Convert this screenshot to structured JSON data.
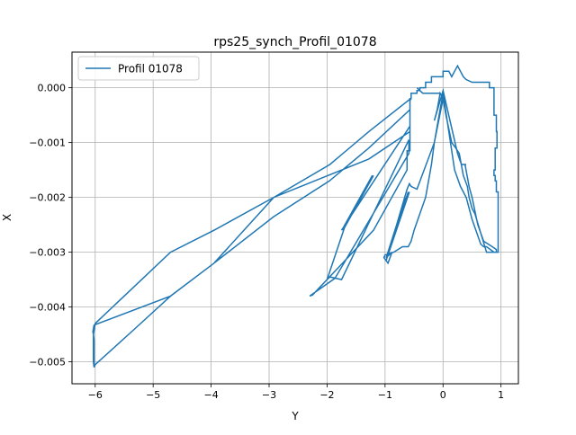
{
  "chart_data": {
    "type": "line",
    "title": "rps25_synch_Profil_01078",
    "xlabel": "Y",
    "ylabel": "X",
    "xlim": [
      -6.4,
      1.3
    ],
    "ylim": [
      -0.0054,
      0.00065
    ],
    "grid": true,
    "legend_position": "upper-left",
    "x_ticks": [
      {
        "value": -6,
        "label": "−6"
      },
      {
        "value": -5,
        "label": "−5"
      },
      {
        "value": -4,
        "label": "−4"
      },
      {
        "value": -3,
        "label": "−3"
      },
      {
        "value": -2,
        "label": "−2"
      },
      {
        "value": -1,
        "label": "−1"
      },
      {
        "value": 0,
        "label": "0"
      },
      {
        "value": 1,
        "label": "1"
      }
    ],
    "y_ticks": [
      {
        "value": 0.0,
        "label": "0.000"
      },
      {
        "value": -0.001,
        "label": "−0.001"
      },
      {
        "value": -0.002,
        "label": "−0.002"
      },
      {
        "value": -0.003,
        "label": "−0.003"
      },
      {
        "value": -0.004,
        "label": "−0.004"
      },
      {
        "value": -0.005,
        "label": "−0.005"
      }
    ],
    "series": [
      {
        "name": "Profil 01078",
        "color": "#1f77b4",
        "x": [
          -6.02,
          -6.03,
          -6.03,
          -6.0,
          -5.32,
          -4.7,
          -3.95,
          -2.92,
          -1.95,
          -1.28,
          -0.56,
          -0.57,
          -0.57,
          -1.28,
          -2.92,
          -3.95,
          -4.7,
          -5.32,
          -6.0,
          -6.02,
          -6.02,
          -6.03,
          -6.04,
          -6.02,
          -4.7,
          -3.95,
          -2.92,
          -1.96,
          -1.28,
          -0.57,
          -0.57,
          -1.75,
          -1.72,
          -1.22,
          -1.73,
          -1.7,
          -1.2,
          -1.7,
          -2.0,
          -1.95,
          -1.75,
          -0.59,
          -0.59,
          -1.85,
          -1.87,
          -2.3,
          -2.25,
          -1.2,
          -0.62,
          -0.62,
          -0.57,
          -0.57,
          -0.55,
          -0.55,
          -0.45,
          -0.45,
          -0.4,
          -0.4,
          -0.3,
          -0.3,
          -0.2,
          -0.2,
          0.0,
          0.0,
          0.05,
          0.1,
          0.15,
          0.2,
          0.25,
          0.3,
          0.35,
          0.4,
          0.5,
          0.8,
          0.8,
          0.88,
          0.88,
          0.92,
          0.92,
          0.93,
          0.93,
          0.9,
          0.9,
          0.88,
          0.88,
          0.9,
          0.9,
          0.92,
          0.92,
          0.95,
          0.95,
          0.9,
          0.88,
          0.75,
          0.7,
          0.65,
          0.5,
          0.4,
          0.3,
          0.2,
          0.1,
          0.0,
          -0.05,
          -0.1,
          -0.15,
          -0.2,
          -0.3,
          -0.5,
          -0.55,
          -0.6,
          -0.65,
          -0.7,
          -0.85,
          -1.0,
          -1.02,
          -0.95,
          -0.88,
          -0.98,
          -0.6,
          -0.95,
          -0.58,
          -0.98,
          -0.65,
          -0.98,
          -0.62,
          -0.58,
          -0.55,
          -0.55,
          -0.45,
          -0.45,
          -0.15,
          0.0,
          -0.05,
          -0.1,
          -0.15,
          0.0,
          0.25,
          0.3,
          0.32,
          0.4,
          0.38,
          0.45,
          0.5,
          0.6,
          0.7,
          0.85,
          0.92,
          0.92,
          0.75,
          0.55,
          0.5,
          0.45,
          0.42,
          0.35,
          0.28,
          0.22,
          0.15,
          0.05,
          0.0,
          -0.05,
          -0.35,
          -0.4,
          -0.45
        ],
        "y": [
          -0.0051,
          -0.005,
          -0.0045,
          -0.0043,
          -0.00362,
          -0.003,
          -0.0026,
          -0.002,
          -0.0014,
          -0.0008,
          -0.0002,
          -0.00025,
          -0.0008,
          -0.0013,
          -0.002,
          -0.0032,
          -0.0038,
          -0.0044,
          -0.00505,
          -0.0051,
          -0.0046,
          -0.0045,
          -0.00445,
          -0.00433,
          -0.0038,
          -0.0032,
          -0.00235,
          -0.0017,
          -0.0011,
          -0.0004,
          -0.0007,
          -0.0026,
          -0.00255,
          -0.0016,
          -0.0026,
          -0.00255,
          -0.0016,
          -0.00255,
          -0.0035,
          -0.00345,
          -0.0035,
          -0.00095,
          -0.0012,
          -0.00345,
          -0.00348,
          -0.0038,
          -0.00378,
          -0.0026,
          -0.0015,
          -0.00115,
          -0.00115,
          -0.0002,
          -0.0002,
          -0.0001,
          -0.0001,
          -5e-05,
          -5e-05,
          0.0,
          0.0,
          0.0001,
          0.0001,
          0.0002,
          0.0002,
          0.0003,
          0.0003,
          0.0003,
          0.0002,
          0.0003,
          0.0004,
          0.0003,
          0.0002,
          0.00015,
          0.0001,
          0.0001,
          0.0,
          0.0,
          -0.0005,
          -0.0005,
          -0.0008,
          -0.0008,
          -0.0011,
          -0.0011,
          -0.0015,
          -0.0015,
          -0.0016,
          -0.0016,
          -0.0017,
          -0.0017,
          -0.0019,
          -0.0019,
          -0.003,
          -0.003,
          -0.003,
          -0.0029,
          -0.0029,
          -0.00285,
          -0.0024,
          -0.002,
          -0.0018,
          -0.0015,
          -0.0008,
          -0.0001,
          -0.0004,
          -0.0007,
          -0.001,
          -0.0014,
          -0.002,
          -0.0026,
          -0.0028,
          -0.0029,
          -0.0029,
          -0.0029,
          -0.003,
          -0.00305,
          -0.0031,
          -0.0032,
          -0.003,
          -0.0031,
          -0.0019,
          -0.00305,
          -0.0019,
          -0.0031,
          -0.002,
          -0.00315,
          -0.00185,
          -0.00175,
          -0.0018,
          -0.0018,
          -0.00185,
          -0.00185,
          -0.001,
          -0.0002,
          -0.0001,
          -0.0004,
          -0.0006,
          -5e-05,
          -0.0012,
          -0.00135,
          -0.0014,
          -0.0014,
          -0.0014,
          -0.0018,
          -0.002,
          -0.0025,
          -0.0028,
          -0.0029,
          -0.00295,
          -0.003,
          -0.003,
          -0.0023,
          -0.0022,
          -0.002,
          -0.0018,
          -0.0016,
          -0.0012,
          -0.0011,
          -0.001,
          -0.0005,
          -0.0002,
          -0.0001,
          -0.0001,
          -5e-05,
          0.0
        ]
      }
    ]
  }
}
